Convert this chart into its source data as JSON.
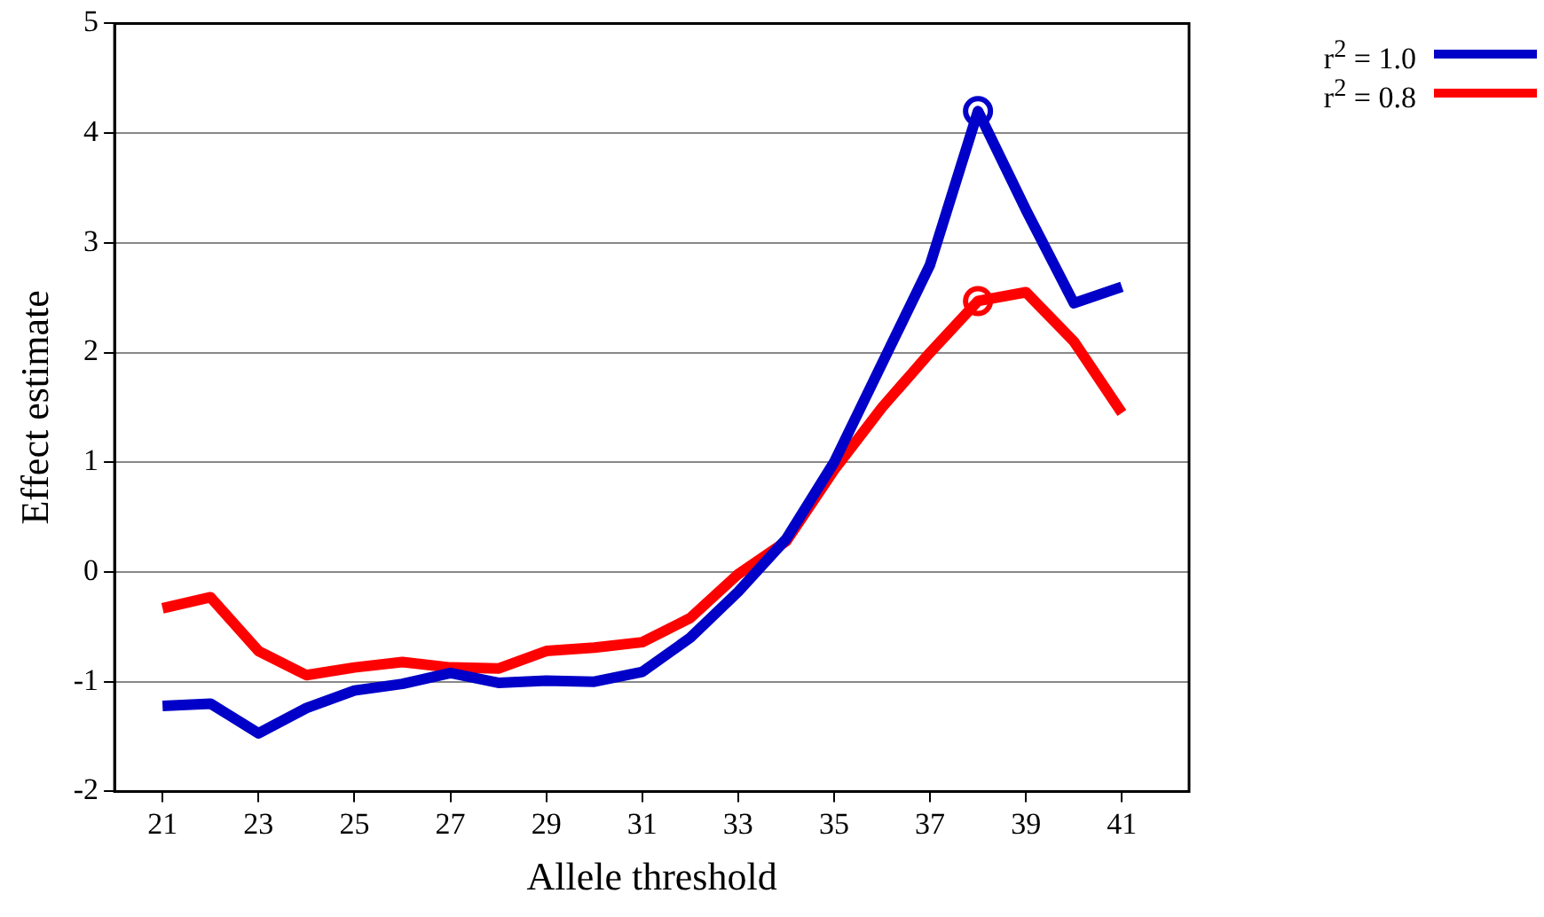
{
  "chart_data": {
    "type": "line",
    "xlabel": "Allele threshold",
    "ylabel": "Effect estimate",
    "x": [
      21,
      22,
      23,
      24,
      25,
      26,
      27,
      28,
      29,
      30,
      31,
      32,
      33,
      34,
      35,
      36,
      37,
      38,
      39,
      40,
      41
    ],
    "series": [
      {
        "name": "r$^{2}$ = 1.0",
        "color": "#0000c8",
        "values": [
          -1.22,
          -1.2,
          -1.47,
          -1.24,
          -1.08,
          -1.02,
          -0.92,
          -1.01,
          -0.99,
          -1.0,
          -0.91,
          -0.6,
          -0.18,
          0.3,
          1.0,
          1.9,
          2.8,
          4.2,
          3.3,
          2.45,
          2.6
        ]
      },
      {
        "name": "r$^{2}$ = 0.8",
        "color": "#ff0000",
        "values": [
          -0.33,
          -0.23,
          -0.72,
          -0.94,
          -0.87,
          -0.82,
          -0.87,
          -0.88,
          -0.72,
          -0.69,
          -0.64,
          -0.42,
          -0.02,
          0.28,
          0.93,
          1.5,
          2.0,
          2.47,
          2.55,
          2.1,
          1.45
        ]
      },
      {
        "type": "scatter",
        "marker": "circle",
        "color": "#0000c8",
        "x": [
          38
        ],
        "values": [
          4.2
        ]
      },
      {
        "type": "scatter",
        "marker": "circle",
        "color": "#ff0000",
        "x": [
          38
        ],
        "values": [
          2.47
        ]
      }
    ],
    "xlim": [
      20,
      42.4
    ],
    "xticks": [
      21,
      23,
      25,
      27,
      29,
      31,
      33,
      35,
      37,
      39,
      41
    ],
    "ylim": [
      -2,
      5
    ],
    "yticks": [
      -2,
      -1,
      0,
      1,
      2,
      3,
      4,
      5
    ],
    "grid": "y",
    "legend": "top right",
    "marker": "none",
    "line_style": "solid"
  }
}
